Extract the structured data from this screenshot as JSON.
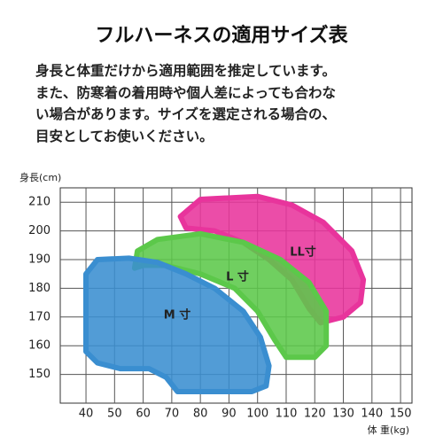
{
  "chart_data": {
    "type": "region",
    "title": "フルハーネスの適用サイズ表",
    "description": [
      "身長と体重だけから適用範囲を推定しています。",
      "また、防寒着の着用時や個人差によっても合わな",
      "い場合があります。サイズを選定される場合の、",
      "目安としてお使いください。"
    ],
    "y_label": "身長(cm)",
    "x_label": "体 重(kg)",
    "xlim": [
      31,
      154
    ],
    "ylim": [
      140,
      215
    ],
    "xticks": [
      40,
      50,
      60,
      70,
      80,
      90,
      100,
      110,
      120,
      130,
      140,
      150
    ],
    "yticks": [
      150,
      160,
      170,
      180,
      190,
      200,
      210
    ],
    "grid": true,
    "series": [
      {
        "name": "LL寸",
        "color": "#e8349c",
        "x": [
          73,
          80,
          100,
          112,
          123,
          133,
          137,
          136,
          130,
          122,
          118,
          112,
          104,
          95,
          85,
          75
        ],
        "y": [
          205,
          211,
          212,
          209,
          203,
          193,
          183,
          175,
          170,
          168,
          173,
          183,
          190,
          196,
          200,
          201
        ]
      },
      {
        "name": "L 寸",
        "color": "#5cc84a",
        "x": [
          57,
          58,
          65,
          80,
          95,
          108,
          118,
          124,
          124,
          120,
          110,
          106,
          100,
          92,
          80,
          68,
          60
        ],
        "y": [
          187,
          193,
          197,
          199,
          196,
          190,
          182,
          172,
          160,
          156,
          156,
          162,
          172,
          180,
          185,
          188,
          188
        ]
      },
      {
        "name": "M 寸",
        "color": "#3a8ed0",
        "x": [
          40,
          44,
          55,
          65,
          75,
          85,
          95,
          101,
          104,
          103,
          98,
          72,
          68,
          62,
          52,
          44,
          40
        ],
        "y": [
          185,
          190,
          190.5,
          189,
          185,
          180,
          172,
          163,
          153,
          146,
          144,
          144,
          149,
          152,
          152,
          154,
          158
        ]
      }
    ]
  }
}
